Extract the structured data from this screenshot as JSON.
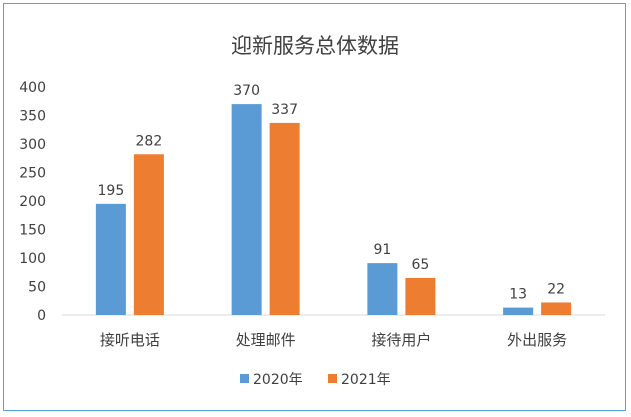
{
  "chart_data": {
    "type": "bar",
    "title": "迎新服务总体数据",
    "categories": [
      "接听电话",
      "处理邮件",
      "接待用户",
      "外出服务"
    ],
    "series": [
      {
        "name": "2020年",
        "color": "#5B9BD5",
        "values": [
          195,
          370,
          91,
          13
        ]
      },
      {
        "name": "2021年",
        "color": "#ED7D31",
        "values": [
          282,
          337,
          65,
          22
        ]
      }
    ],
    "ylim": [
      0,
      400
    ],
    "yticks": [
      0,
      50,
      100,
      150,
      200,
      250,
      300,
      350,
      400
    ],
    "grid": false,
    "legend": "bottom",
    "xlabel": "",
    "ylabel": ""
  }
}
